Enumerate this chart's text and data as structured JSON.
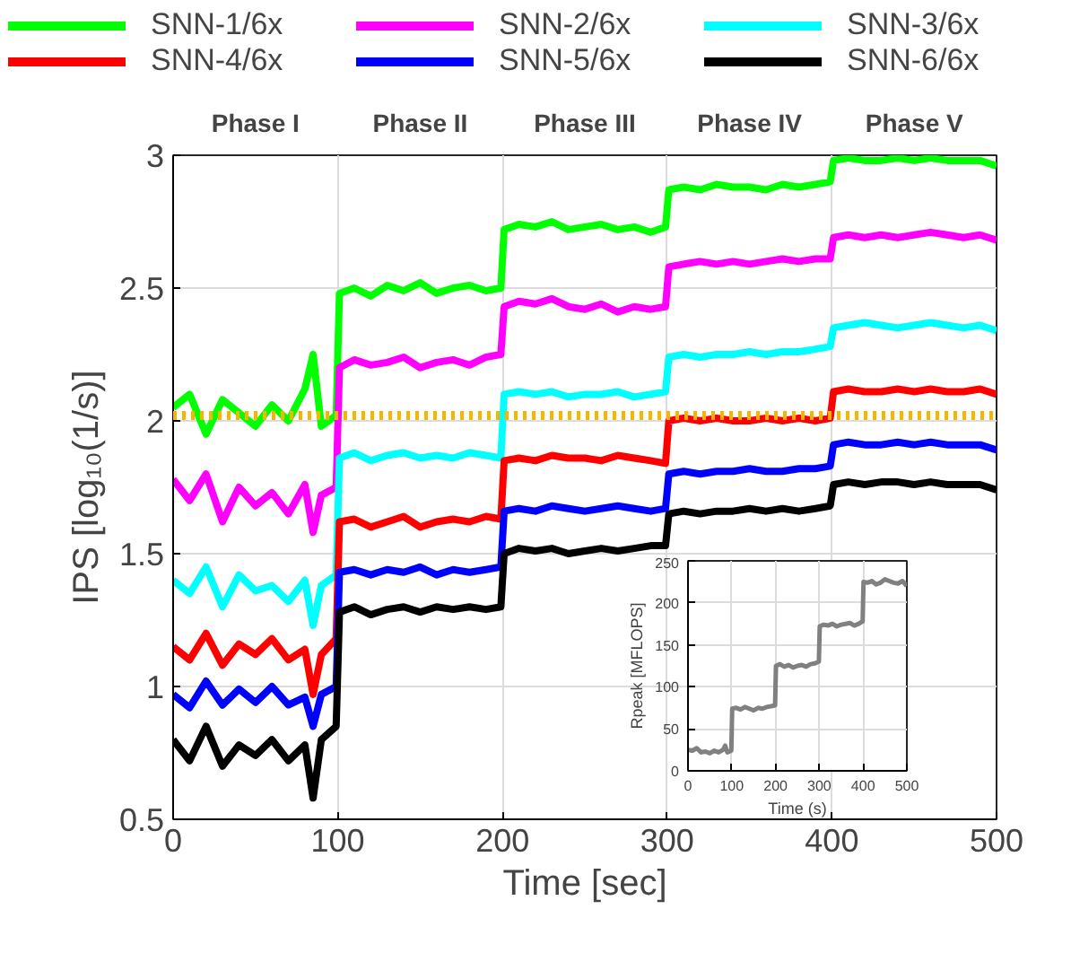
{
  "chart_data": [
    {
      "type": "line",
      "xlabel": "Time [sec]",
      "ylabel": "IPS [log₁₀(1/s)]",
      "annotations": [
        "Phase I",
        "Phase II",
        "Phase III",
        "Phase IV",
        "Phase V"
      ],
      "x": [
        0,
        10,
        20,
        30,
        40,
        50,
        60,
        70,
        80,
        85,
        90,
        99,
        101,
        110,
        120,
        130,
        140,
        150,
        160,
        170,
        180,
        190,
        199,
        201,
        210,
        220,
        230,
        240,
        250,
        260,
        270,
        280,
        290,
        299,
        301,
        310,
        320,
        330,
        340,
        350,
        360,
        370,
        380,
        390,
        399,
        401,
        410,
        420,
        430,
        440,
        450,
        460,
        470,
        480,
        490,
        500
      ],
      "series": [
        {
          "name": "SNN-1/6x",
          "color": "#00ff00",
          "values": [
            2.05,
            2.1,
            1.95,
            2.08,
            2.03,
            1.98,
            2.06,
            2.0,
            2.12,
            2.25,
            1.98,
            2.02,
            2.48,
            2.5,
            2.47,
            2.51,
            2.49,
            2.52,
            2.48,
            2.5,
            2.51,
            2.49,
            2.5,
            2.72,
            2.74,
            2.73,
            2.75,
            2.72,
            2.73,
            2.74,
            2.72,
            2.73,
            2.71,
            2.73,
            2.87,
            2.88,
            2.87,
            2.89,
            2.88,
            2.88,
            2.87,
            2.89,
            2.88,
            2.89,
            2.9,
            2.98,
            2.99,
            2.98,
            2.98,
            2.99,
            2.98,
            2.99,
            2.98,
            2.98,
            2.98,
            2.96
          ]
        },
        {
          "name": "SNN-2/6x",
          "color": "#ff00ff",
          "values": [
            1.78,
            1.7,
            1.8,
            1.62,
            1.75,
            1.68,
            1.73,
            1.65,
            1.76,
            1.58,
            1.72,
            1.75,
            2.2,
            2.23,
            2.21,
            2.22,
            2.24,
            2.2,
            2.22,
            2.23,
            2.21,
            2.24,
            2.25,
            2.43,
            2.45,
            2.44,
            2.46,
            2.43,
            2.42,
            2.44,
            2.41,
            2.43,
            2.42,
            2.43,
            2.58,
            2.59,
            2.6,
            2.59,
            2.6,
            2.59,
            2.6,
            2.61,
            2.6,
            2.61,
            2.61,
            2.69,
            2.7,
            2.69,
            2.7,
            2.69,
            2.7,
            2.71,
            2.7,
            2.69,
            2.7,
            2.68
          ]
        },
        {
          "name": "SNN-3/6x",
          "color": "#00ffff",
          "values": [
            1.4,
            1.35,
            1.45,
            1.3,
            1.42,
            1.36,
            1.38,
            1.32,
            1.4,
            1.23,
            1.38,
            1.42,
            1.86,
            1.88,
            1.85,
            1.87,
            1.88,
            1.86,
            1.87,
            1.86,
            1.88,
            1.87,
            1.86,
            2.1,
            2.11,
            2.1,
            2.11,
            2.09,
            2.1,
            2.1,
            2.11,
            2.09,
            2.1,
            2.11,
            2.24,
            2.25,
            2.24,
            2.25,
            2.25,
            2.26,
            2.25,
            2.26,
            2.26,
            2.27,
            2.28,
            2.35,
            2.36,
            2.37,
            2.36,
            2.35,
            2.36,
            2.37,
            2.36,
            2.35,
            2.36,
            2.34
          ]
        },
        {
          "name": "SNN-4/6x",
          "color": "#ff0000",
          "values": [
            1.15,
            1.1,
            1.2,
            1.08,
            1.16,
            1.12,
            1.18,
            1.1,
            1.14,
            0.97,
            1.12,
            1.18,
            1.62,
            1.63,
            1.6,
            1.62,
            1.64,
            1.6,
            1.62,
            1.63,
            1.62,
            1.64,
            1.63,
            1.85,
            1.86,
            1.85,
            1.87,
            1.86,
            1.86,
            1.85,
            1.87,
            1.86,
            1.85,
            1.84,
            2.0,
            2.01,
            2.0,
            2.01,
            2.0,
            2.0,
            2.01,
            2.0,
            2.01,
            2.0,
            2.01,
            2.11,
            2.12,
            2.11,
            2.11,
            2.12,
            2.11,
            2.12,
            2.11,
            2.11,
            2.12,
            2.1
          ]
        },
        {
          "name": "SNN-5/6x",
          "color": "#0000ff",
          "values": [
            0.97,
            0.92,
            1.02,
            0.93,
            0.99,
            0.94,
            1.0,
            0.93,
            0.96,
            0.85,
            0.97,
            1.0,
            1.43,
            1.44,
            1.42,
            1.44,
            1.43,
            1.45,
            1.42,
            1.44,
            1.43,
            1.44,
            1.45,
            1.66,
            1.67,
            1.66,
            1.68,
            1.67,
            1.66,
            1.67,
            1.68,
            1.67,
            1.66,
            1.67,
            1.8,
            1.81,
            1.8,
            1.81,
            1.81,
            1.82,
            1.81,
            1.81,
            1.82,
            1.82,
            1.83,
            1.91,
            1.92,
            1.91,
            1.91,
            1.92,
            1.91,
            1.92,
            1.91,
            1.91,
            1.91,
            1.89
          ]
        },
        {
          "name": "SNN-6/6x",
          "color": "#000000",
          "values": [
            0.8,
            0.72,
            0.85,
            0.7,
            0.78,
            0.74,
            0.8,
            0.72,
            0.78,
            0.58,
            0.8,
            0.85,
            1.28,
            1.3,
            1.27,
            1.29,
            1.3,
            1.28,
            1.3,
            1.29,
            1.3,
            1.29,
            1.3,
            1.5,
            1.52,
            1.51,
            1.52,
            1.5,
            1.51,
            1.52,
            1.51,
            1.52,
            1.53,
            1.53,
            1.65,
            1.66,
            1.65,
            1.66,
            1.66,
            1.67,
            1.66,
            1.67,
            1.66,
            1.67,
            1.68,
            1.76,
            1.77,
            1.76,
            1.77,
            1.77,
            1.76,
            1.77,
            1.76,
            1.76,
            1.76,
            1.74
          ]
        }
      ],
      "ref_lines": [
        {
          "axis": "y",
          "value": 2.02,
          "color": "#f7b500",
          "line_style": "dotted"
        }
      ],
      "xlim": [
        0,
        500
      ],
      "xticks": [
        0,
        100,
        200,
        300,
        400,
        500
      ],
      "ylim": [
        0.5,
        3
      ],
      "yticks": [
        0.5,
        1,
        1.5,
        2,
        2.5,
        3
      ],
      "grid": true,
      "legend": "top"
    },
    {
      "type": "line",
      "xlabel": "Time (s)",
      "ylabel": "Rpeak [MFLOPS]",
      "x": [
        0,
        10,
        20,
        30,
        40,
        50,
        60,
        70,
        80,
        85,
        90,
        99,
        101,
        110,
        120,
        130,
        140,
        150,
        160,
        170,
        180,
        190,
        199,
        201,
        210,
        220,
        230,
        240,
        250,
        260,
        270,
        280,
        290,
        299,
        301,
        310,
        320,
        330,
        340,
        350,
        360,
        370,
        380,
        390,
        399,
        401,
        410,
        420,
        430,
        440,
        450,
        460,
        470,
        480,
        490,
        500
      ],
      "series": [
        {
          "color": "#808080",
          "values": [
            25,
            24,
            27,
            22,
            23,
            21,
            24,
            22,
            25,
            30,
            22,
            24,
            74,
            75,
            73,
            76,
            74,
            72,
            75,
            74,
            76,
            77,
            78,
            125,
            127,
            124,
            126,
            123,
            125,
            126,
            124,
            127,
            128,
            130,
            172,
            174,
            173,
            175,
            172,
            174,
            175,
            176,
            173,
            175,
            178,
            225,
            224,
            226,
            222,
            224,
            228,
            226,
            224,
            223,
            226,
            220
          ]
        }
      ],
      "xlim": [
        0,
        500
      ],
      "xticks": [
        0,
        100,
        200,
        300,
        400,
        500
      ],
      "ylim": [
        0,
        250
      ],
      "yticks": [
        0,
        50,
        100,
        150,
        200,
        250
      ],
      "grid": true
    }
  ]
}
